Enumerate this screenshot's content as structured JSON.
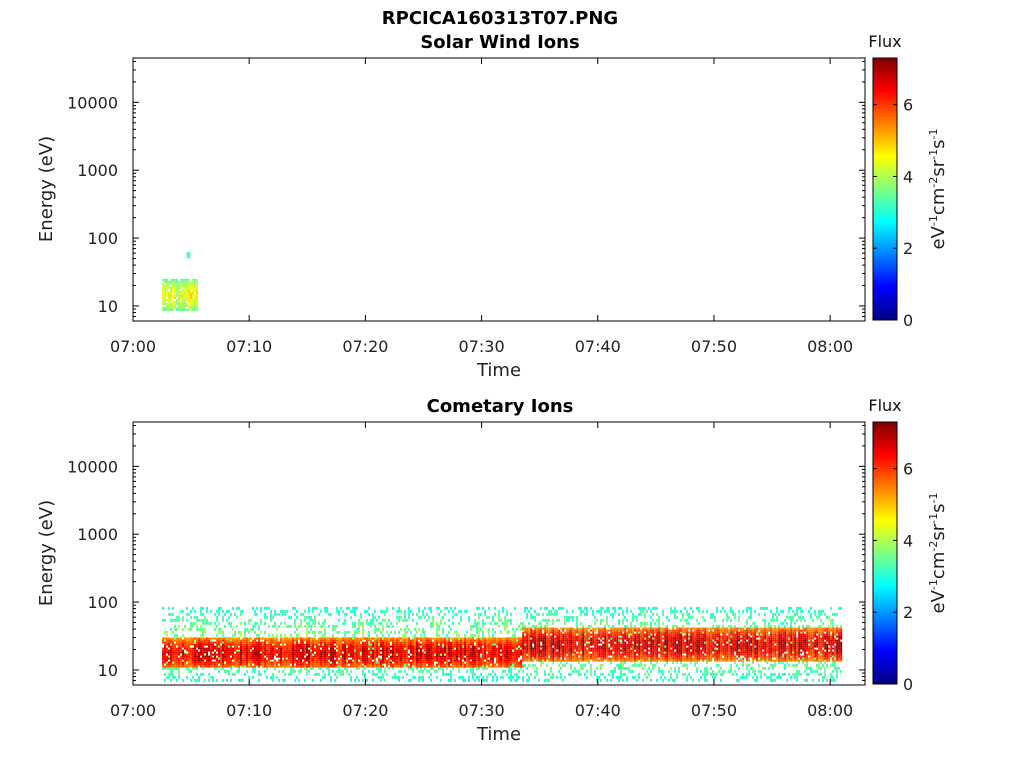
{
  "figure_title": "RPCICA160313T07.PNG",
  "chart_data": [
    {
      "type": "heatmap",
      "title": "Solar Wind Ions",
      "xlabel": "Time",
      "ylabel": "Energy (eV)",
      "x_ticks": [
        "07:00",
        "07:10",
        "07:20",
        "07:30",
        "07:40",
        "07:50",
        "08:00"
      ],
      "xlim": [
        "07:00",
        "08:03"
      ],
      "y_scale": "log",
      "y_ticks": [
        10,
        100,
        1000,
        10000
      ],
      "ylim": [
        6,
        45000
      ],
      "colorbar": {
        "title": "Flux",
        "label": "eV-1cm-2sr-1s-1",
        "ticks": [
          0,
          2,
          4,
          6
        ],
        "range": [
          0,
          7.3
        ],
        "colormap": "jet"
      },
      "regions": [
        {
          "t_start": "07:02.5",
          "t_end": "07:05.5",
          "e_min": 9,
          "e_max": 25,
          "flux_min": 2.8,
          "flux_max": 4.8
        },
        {
          "t_start": "07:04.6",
          "t_end": "07:04.9",
          "e_min": 52,
          "e_max": 62,
          "flux_min": 3.0,
          "flux_max": 3.2
        }
      ]
    },
    {
      "type": "heatmap",
      "title": "Cometary Ions",
      "xlabel": "Time",
      "ylabel": "Energy (eV)",
      "x_ticks": [
        "07:00",
        "07:10",
        "07:20",
        "07:30",
        "07:40",
        "07:50",
        "08:00"
      ],
      "xlim": [
        "07:00",
        "08:03"
      ],
      "y_scale": "log",
      "y_ticks": [
        10,
        100,
        1000,
        10000
      ],
      "ylim": [
        6,
        45000
      ],
      "colorbar": {
        "title": "Flux",
        "label": "eV-1cm-2sr-1s-1",
        "ticks": [
          0,
          2,
          4,
          6
        ],
        "range": [
          0,
          7.3
        ],
        "colormap": "jet"
      },
      "regions": [
        {
          "t_start": "07:02.5",
          "t_end": "08:01",
          "e_min": 7,
          "e_max": 85,
          "flux_min": 2.5,
          "flux_max": 4.0,
          "note": "sparse"
        },
        {
          "t_start": "07:02.5",
          "t_end": "07:33.5",
          "e_min": 11,
          "e_max": 30,
          "flux_min": 4.5,
          "flux_max": 7.2
        },
        {
          "t_start": "07:33.5",
          "t_end": "08:01",
          "e_min": 14,
          "e_max": 42,
          "flux_min": 4.5,
          "flux_max": 7.3
        }
      ]
    }
  ]
}
